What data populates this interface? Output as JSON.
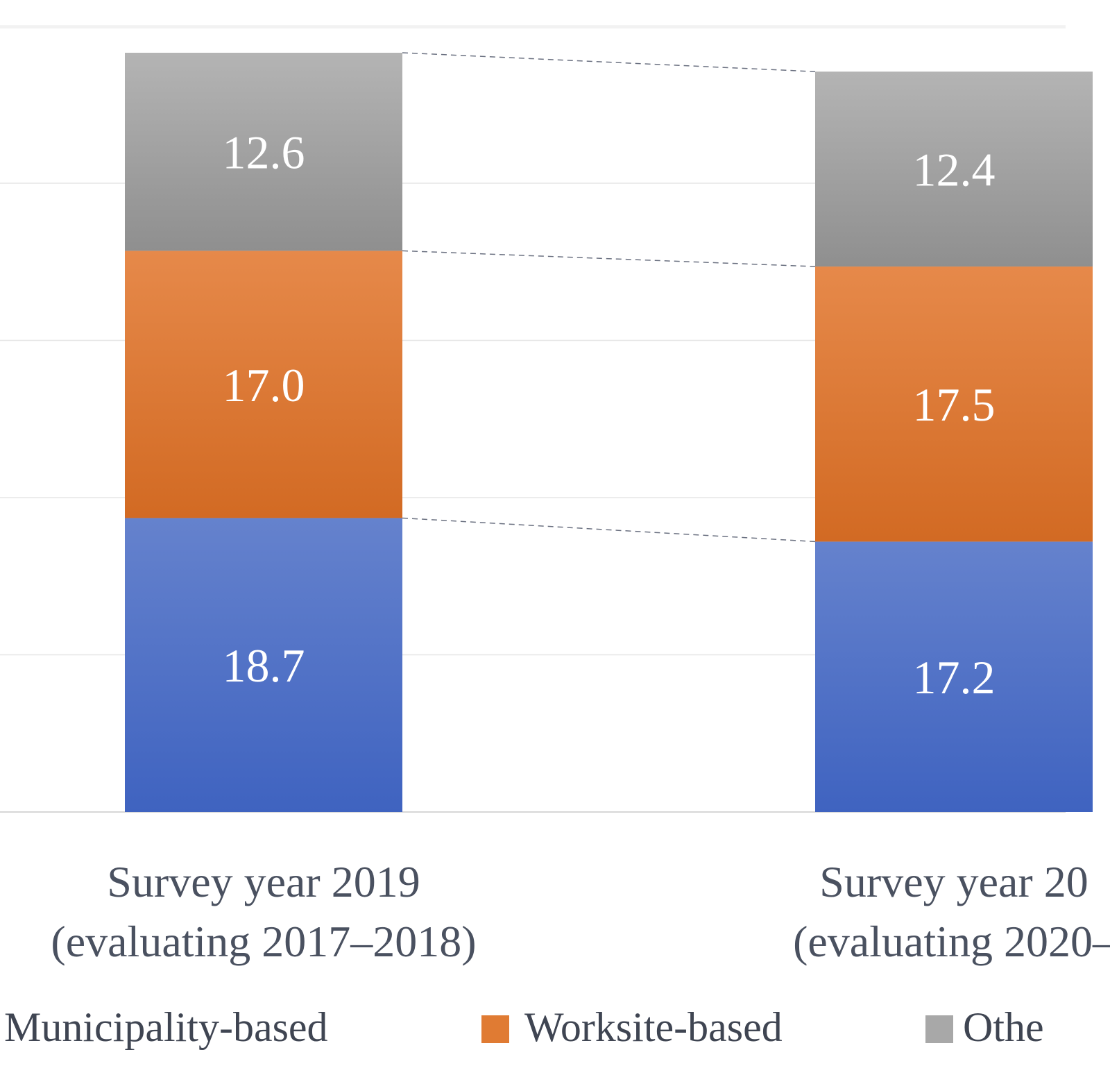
{
  "chart_data": {
    "type": "bar",
    "stacked": true,
    "categories": [
      {
        "line1": "Survey year 2019",
        "line2": "(evaluating 2017–2018)"
      },
      {
        "line1": "Survey year 20",
        "line2": "(evaluating 2020–"
      }
    ],
    "series": [
      {
        "name": "Municipality-based",
        "color": "#4a6bc8",
        "values": [
          18.7,
          17.2
        ]
      },
      {
        "name": "Worksite-based",
        "color": "#e07b33",
        "values": [
          17.0,
          17.5
        ]
      },
      {
        "name": "Othe",
        "color": "#a8a8a8",
        "values": [
          12.6,
          12.4
        ]
      }
    ],
    "ylim": [
      0,
      50
    ],
    "grid": true,
    "connector_lines": true,
    "legend_position": "bottom"
  }
}
